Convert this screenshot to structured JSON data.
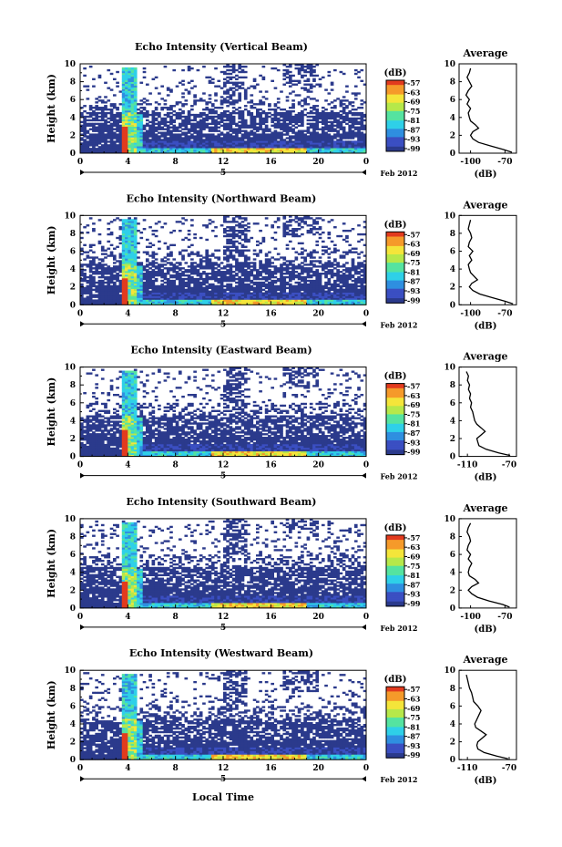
{
  "figure": {
    "xlabel": "Local Time",
    "date_label": "Feb 2012",
    "colors": {
      "colormap": [
        "#2b3a8c",
        "#3b4fc2",
        "#2f8fe0",
        "#2fd0e8",
        "#55e3a0",
        "#b6e84a",
        "#f4e53a",
        "#f59a2a",
        "#e23b1e"
      ],
      "bg": "#ffffff"
    }
  },
  "chart_data": [
    {
      "type": "heatmap",
      "title": "Echo Intensity (Vertical Beam)",
      "ylabel": "Height (km)",
      "xlabel": "",
      "x_ticks": [
        "0",
        "4",
        "8",
        "12",
        "16",
        "20",
        "0"
      ],
      "y_ticks": [
        "0",
        "2",
        "4",
        "6",
        "8",
        "10"
      ],
      "day_label": "5",
      "date_label": "Feb 2012",
      "xlim": [
        0,
        24
      ],
      "ylim": [
        0,
        10
      ],
      "colorbar": {
        "unit": "(dB)",
        "ticks": [
          "-57",
          "-63",
          "-69",
          "-75",
          "-81",
          "-87",
          "-93",
          "-99"
        ]
      },
      "profile": {
        "title": "Average",
        "xlabel": "(dB)",
        "x_ticks": [
          "-100",
          "-70"
        ],
        "x_tick_values": [
          -100,
          -70
        ],
        "y_ticks": [
          "0",
          "2",
          "4",
          "6",
          "8",
          "10"
        ],
        "xlim": [
          -110,
          -60
        ],
        "height_km": [
          0.1,
          0.4,
          0.8,
          1.2,
          1.6,
          2.0,
          2.4,
          2.8,
          3.2,
          3.6,
          4.0,
          4.5,
          5.0,
          5.5,
          6.0,
          6.5,
          7.0,
          7.5,
          8.0,
          8.5,
          9.0,
          9.5
        ],
        "db": [
          -64,
          -71,
          -82,
          -93,
          -98,
          -100,
          -98,
          -93,
          -96,
          -100,
          -101,
          -102,
          -100,
          -103,
          -101,
          -104,
          -102,
          -99,
          -101,
          -103,
          -101,
          -100
        ]
      }
    },
    {
      "type": "heatmap",
      "title": "Echo Intensity (Northward Beam)",
      "ylabel": "Height (km)",
      "xlabel": "",
      "x_ticks": [
        "0",
        "4",
        "8",
        "12",
        "16",
        "20",
        "0"
      ],
      "y_ticks": [
        "0",
        "2",
        "4",
        "6",
        "8",
        "10"
      ],
      "day_label": "5",
      "date_label": "Feb 2012",
      "xlim": [
        0,
        24
      ],
      "ylim": [
        0,
        10
      ],
      "colorbar": {
        "unit": "(dB)",
        "ticks": [
          "-57",
          "-63",
          "-69",
          "-75",
          "-81",
          "-87",
          "-93",
          "-99"
        ]
      },
      "profile": {
        "title": "Average",
        "xlabel": "(dB)",
        "x_ticks": [
          "-100",
          "-70"
        ],
        "x_tick_values": [
          -100,
          -70
        ],
        "y_ticks": [
          "0",
          "2",
          "4",
          "6",
          "8",
          "10"
        ],
        "xlim": [
          -110,
          -60
        ],
        "height_km": [
          0.1,
          0.4,
          0.8,
          1.2,
          1.6,
          2.0,
          2.4,
          2.8,
          3.2,
          3.6,
          4.0,
          4.5,
          5.0,
          5.5,
          6.0,
          6.5,
          7.0,
          7.5,
          8.0,
          8.5,
          9.0,
          9.5
        ],
        "db": [
          -63,
          -70,
          -81,
          -92,
          -98,
          -101,
          -99,
          -94,
          -97,
          -100,
          -101,
          -102,
          -99,
          -101,
          -98,
          -102,
          -101,
          -99,
          -100,
          -102,
          -101,
          -100
        ]
      }
    },
    {
      "type": "heatmap",
      "title": "Echo Intensity (Eastward Beam)",
      "ylabel": "Height (km)",
      "xlabel": "",
      "x_ticks": [
        "0",
        "4",
        "8",
        "12",
        "16",
        "20",
        "0"
      ],
      "y_ticks": [
        "0",
        "2",
        "4",
        "6",
        "8",
        "10"
      ],
      "day_label": "5",
      "date_label": "Feb 2012",
      "xlim": [
        0,
        24
      ],
      "ylim": [
        0,
        10
      ],
      "colorbar": {
        "unit": "(dB)",
        "ticks": [
          "-57",
          "-63",
          "-69",
          "-75",
          "-81",
          "-87",
          "-93",
          "-99"
        ]
      },
      "profile": {
        "title": "Average",
        "xlabel": "(dB)",
        "x_ticks": [
          "-110",
          "-70"
        ],
        "x_tick_values": [
          -110,
          -70
        ],
        "y_ticks": [
          "0",
          "2",
          "4",
          "6",
          "8",
          "10"
        ],
        "xlim": [
          -118,
          -63
        ],
        "height_km": [
          0.1,
          0.4,
          0.8,
          1.2,
          1.6,
          2.0,
          2.4,
          2.8,
          3.2,
          3.6,
          4.0,
          4.5,
          5.0,
          5.5,
          6.0,
          6.5,
          7.0,
          7.5,
          8.0,
          8.5,
          9.0,
          9.5
        ],
        "db": [
          -69,
          -80,
          -92,
          -99,
          -100,
          -101,
          -97,
          -93,
          -97,
          -101,
          -103,
          -104,
          -105,
          -107,
          -106,
          -108,
          -107,
          -109,
          -108,
          -110,
          -109,
          -111
        ]
      }
    },
    {
      "type": "heatmap",
      "title": "Echo Intensity (Southward Beam)",
      "ylabel": "Height (km)",
      "xlabel": "",
      "x_ticks": [
        "0",
        "4",
        "8",
        "12",
        "16",
        "20",
        "0"
      ],
      "y_ticks": [
        "0",
        "2",
        "4",
        "6",
        "8",
        "10"
      ],
      "day_label": "5",
      "date_label": "Feb 2012",
      "xlim": [
        0,
        24
      ],
      "ylim": [
        0,
        10
      ],
      "colorbar": {
        "unit": "(dB)",
        "ticks": [
          "-57",
          "-63",
          "-69",
          "-75",
          "-81",
          "-87",
          "-93",
          "-99"
        ]
      },
      "profile": {
        "title": "Average",
        "xlabel": "(dB)",
        "x_ticks": [
          "-100",
          "-70"
        ],
        "x_tick_values": [
          -100,
          -70
        ],
        "y_ticks": [
          "0",
          "2",
          "4",
          "6",
          "8",
          "10"
        ],
        "xlim": [
          -110,
          -60
        ],
        "height_km": [
          0.1,
          0.4,
          0.8,
          1.2,
          1.6,
          2.0,
          2.4,
          2.8,
          3.2,
          3.6,
          4.0,
          4.5,
          5.0,
          5.5,
          6.0,
          6.5,
          7.0,
          7.5,
          8.0,
          8.5,
          9.0,
          9.5
        ],
        "db": [
          -66,
          -72,
          -84,
          -94,
          -99,
          -102,
          -99,
          -93,
          -96,
          -101,
          -102,
          -101,
          -99,
          -102,
          -100,
          -103,
          -102,
          -100,
          -101,
          -103,
          -102,
          -100
        ]
      }
    },
    {
      "type": "heatmap",
      "title": "Echo Intensity (Westward Beam)",
      "ylabel": "Height (km)",
      "xlabel": "Local Time",
      "x_ticks": [
        "0",
        "4",
        "8",
        "12",
        "16",
        "20",
        "0"
      ],
      "y_ticks": [
        "0",
        "2",
        "4",
        "6",
        "8",
        "10"
      ],
      "day_label": "5",
      "date_label": "Feb 2012",
      "xlim": [
        0,
        24
      ],
      "ylim": [
        0,
        10
      ],
      "colorbar": {
        "unit": "(dB)",
        "ticks": [
          "-57",
          "-63",
          "-69",
          "-75",
          "-81",
          "-87",
          "-93",
          "-99"
        ]
      },
      "profile": {
        "title": "Average",
        "xlabel": "(dB)",
        "x_ticks": [
          "-110",
          "-70"
        ],
        "x_tick_values": [
          -110,
          -70
        ],
        "y_ticks": [
          "0",
          "2",
          "4",
          "6",
          "8",
          "10"
        ],
        "xlim": [
          -118,
          -63
        ],
        "height_km": [
          0.1,
          0.4,
          0.8,
          1.2,
          1.6,
          2.0,
          2.4,
          2.8,
          3.2,
          3.6,
          4.0,
          4.5,
          5.0,
          5.5,
          6.0,
          6.5,
          7.0,
          7.5,
          8.0,
          8.5,
          9.0,
          9.5
        ],
        "db": [
          -71,
          -82,
          -94,
          -100,
          -101,
          -100,
          -96,
          -92,
          -97,
          -102,
          -103,
          -101,
          -99,
          -97,
          -100,
          -104,
          -105,
          -106,
          -108,
          -109,
          -110,
          -111
        ]
      }
    }
  ]
}
